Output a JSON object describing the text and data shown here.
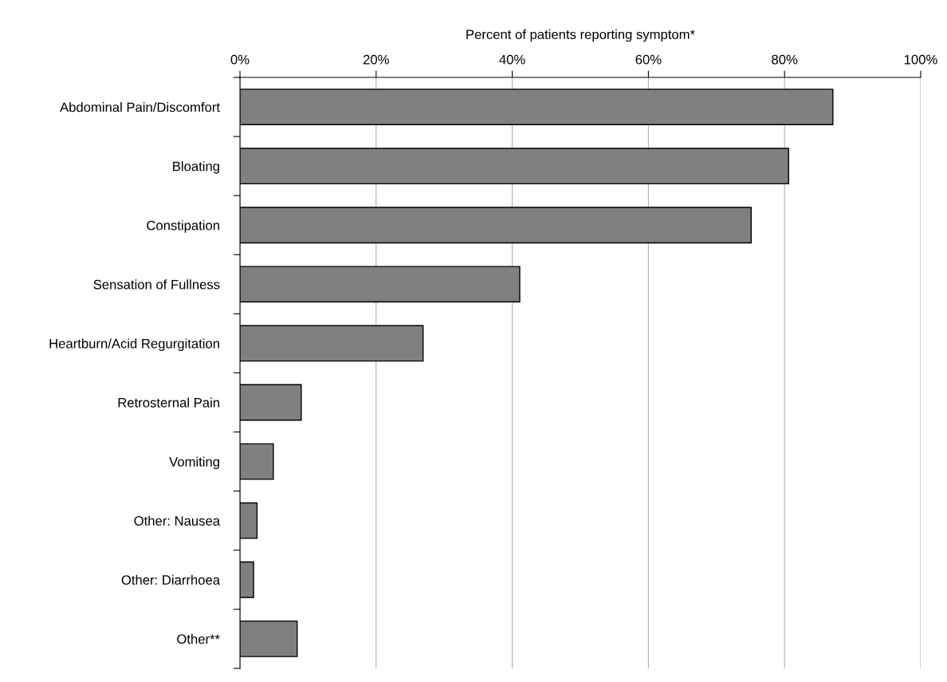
{
  "chart_data": {
    "type": "bar",
    "orientation": "horizontal",
    "xlabel": "Percent of patients reporting symptom*",
    "categories": [
      "Abdominal Pain/Discomfort",
      "Bloating",
      "Constipation",
      "Sensation of Fullness",
      "Heartburn/Acid Regurgitation",
      "Retrosternal Pain",
      "Vomiting",
      "Other: Nausea",
      "Other: Diarrhoea",
      "Other**"
    ],
    "values": [
      87.1,
      80.6,
      75.1,
      41.1,
      26.9,
      9.0,
      4.9,
      2.5,
      2.0,
      8.4
    ],
    "color": "#808080",
    "xlim": [
      0,
      100
    ],
    "xticks": [
      {
        "value": 0,
        "label": "0%"
      },
      {
        "value": 20,
        "label": "20%"
      },
      {
        "value": 40,
        "label": "40%"
      },
      {
        "value": 60,
        "label": "60%"
      },
      {
        "value": 80,
        "label": "80%"
      },
      {
        "value": 100,
        "label": "100%"
      }
    ],
    "grid": "x",
    "legend": false
  }
}
